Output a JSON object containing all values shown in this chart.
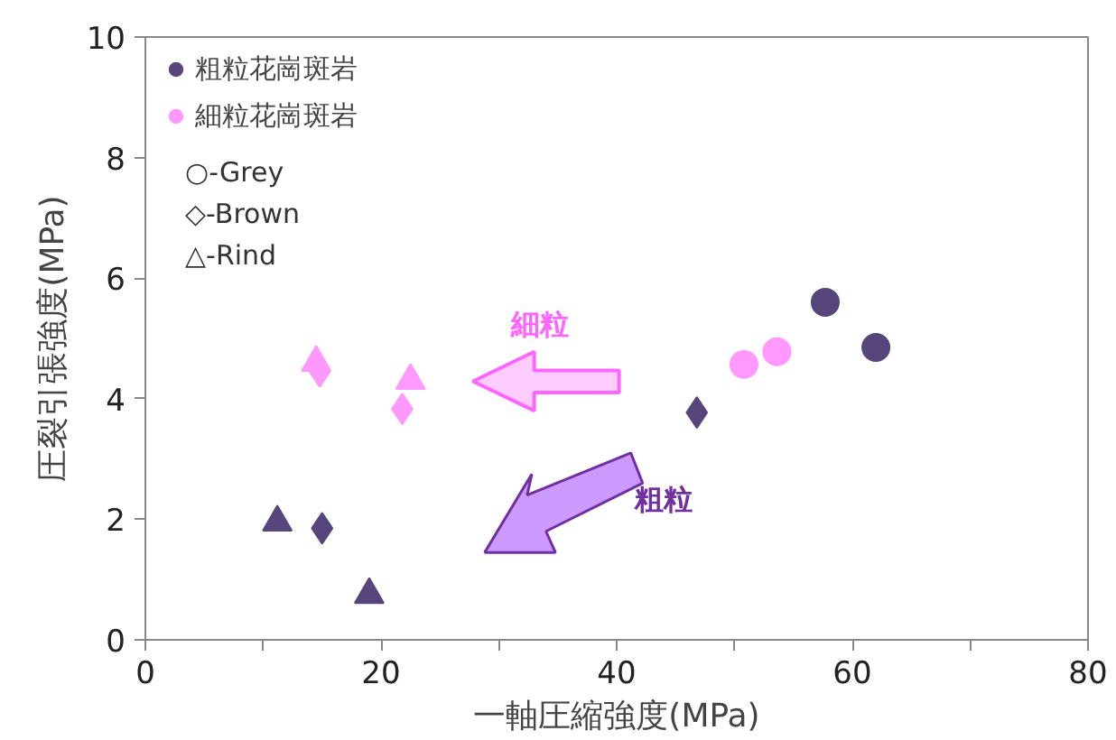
{
  "chart_data": {
    "type": "scatter",
    "xlabel": "一軸圧縮強度(MPa)",
    "ylabel": "圧裂引張強度(MPa)",
    "xlim": [
      0,
      80
    ],
    "xticks": [
      0,
      {
        "value": 10,
        "label": null
      },
      20,
      {
        "value": 30,
        "label": null
      },
      40,
      {
        "value": 50,
        "label": null
      },
      60,
      {
        "value": 70,
        "label": null
      },
      80
    ],
    "ylim": [
      0,
      10
    ],
    "yticks": [
      0,
      2,
      4,
      6,
      8,
      10
    ],
    "grid": false,
    "legend": "top left",
    "series": [
      {
        "name": "粗粒花崗斑岩",
        "color": "#57467b",
        "marker": "circle",
        "x": [
          57.7,
          62.0
        ],
        "values": [
          5.6,
          4.85
        ]
      },
      {
        "name": "細粒花崗斑岩",
        "color": "#ff99ff",
        "marker": "circle",
        "x": [
          50.8,
          53.6
        ],
        "values": [
          4.57,
          4.78
        ]
      },
      {
        "color": "#57467b",
        "marker": "diamond",
        "x": [
          46.8,
          15.0
        ],
        "values": [
          3.77,
          1.85
        ]
      },
      {
        "color": "#ff99ff",
        "marker": "diamond",
        "x": [
          14.8,
          21.8
        ],
        "values": [
          4.45,
          3.83
        ]
      },
      {
        "color": "#57467b",
        "marker": "triangle",
        "x": [
          11.2,
          19.0
        ],
        "values": [
          1.95,
          0.75
        ]
      },
      {
        "color": "#ff99ff",
        "marker": "triangle",
        "x": [
          14.5,
          22.5
        ],
        "values": [
          4.6,
          4.3
        ]
      }
    ],
    "annotations": [
      "○-Grey",
      "◇-Brown",
      "△-Rind",
      "細粒",
      "粗粒"
    ]
  }
}
